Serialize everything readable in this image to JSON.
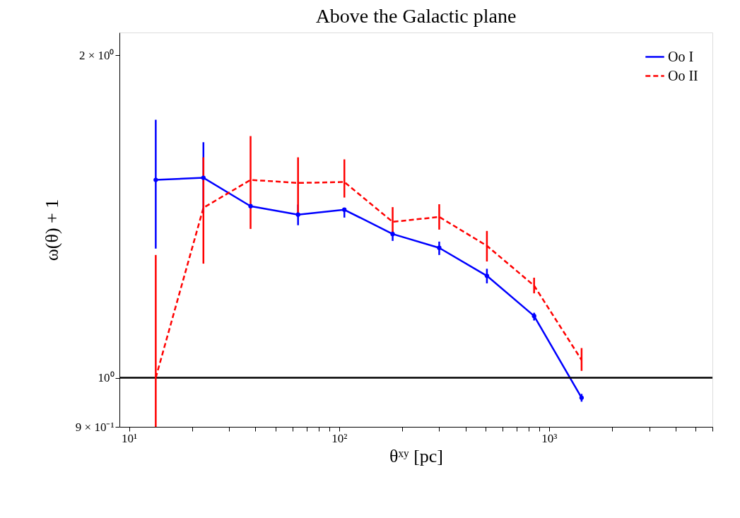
{
  "chart_data": {
    "type": "line",
    "title": "Above the Galactic plane",
    "xlabel": "θˣʸ [pc]",
    "ylabel": "ω(θ) + 1",
    "log": "xy",
    "grid": false,
    "legend": "top right",
    "xlim": [
      9,
      6000
    ],
    "ylim": [
      0.9,
      2.1
    ],
    "xticks": [
      {
        "value": 10,
        "label": "10¹"
      },
      {
        "value": 20,
        "label": null
      },
      {
        "value": 30,
        "label": null
      },
      {
        "value": 40,
        "label": null
      },
      {
        "value": 50,
        "label": null
      },
      {
        "value": 60,
        "label": null
      },
      {
        "value": 70,
        "label": null
      },
      {
        "value": 80,
        "label": null
      },
      {
        "value": 90,
        "label": null
      },
      {
        "value": 100,
        "label": "10²"
      },
      {
        "value": 200,
        "label": null
      },
      {
        "value": 300,
        "label": null
      },
      {
        "value": 400,
        "label": null
      },
      {
        "value": 500,
        "label": null
      },
      {
        "value": 600,
        "label": null
      },
      {
        "value": 700,
        "label": null
      },
      {
        "value": 800,
        "label": null
      },
      {
        "value": 900,
        "label": null
      },
      {
        "value": 1000,
        "label": "10³"
      },
      {
        "value": 2000,
        "label": null
      },
      {
        "value": 3000,
        "label": null
      },
      {
        "value": 4000,
        "label": null
      },
      {
        "value": 5000,
        "label": null
      },
      {
        "value": 6000,
        "label": null
      }
    ],
    "yticks": [
      {
        "value": 0.9,
        "label": "9 × 10⁻¹"
      },
      {
        "value": 1,
        "label": "10⁰"
      },
      {
        "value": 2,
        "label": "2 × 10⁰"
      }
    ],
    "x": [
      13.4,
      22.6,
      37.9,
      63.8,
      106,
      180,
      300,
      506,
      849,
      1429
    ],
    "series": [
      {
        "name": "Oo I",
        "color": "#0000ff",
        "marker": "circle",
        "line_style": "solid",
        "values": [
          1.53,
          1.537,
          1.446,
          1.42,
          1.435,
          1.362,
          1.322,
          1.245,
          1.142,
          0.958
        ],
        "errors": [
          [
            1.32,
            1.741
          ],
          [
            1.426,
            1.659
          ],
          null,
          [
            1.388,
            1.451
          ],
          [
            1.411,
            1.439
          ],
          [
            1.342,
            1.371
          ],
          [
            1.302,
            1.34
          ],
          [
            1.225,
            1.264
          ],
          [
            1.131,
            1.15
          ],
          [
            0.95,
            0.966
          ]
        ]
      },
      {
        "name": "Oo II",
        "color": "#ff0000",
        "marker": "none",
        "line_style": "dashed",
        "values": [
          1.0,
          1.441,
          1.53,
          1.52,
          1.523,
          1.398,
          1.413,
          1.328,
          1.219,
          1.039
        ],
        "errors": [
          [
            0.9,
            1.302
          ],
          [
            1.278,
            1.606
          ],
          [
            1.377,
            1.681
          ],
          [
            1.424,
            1.606
          ],
          [
            1.473,
            1.599
          ],
          [
            1.366,
            1.443
          ],
          [
            1.375,
            1.452
          ],
          [
            1.284,
            1.371
          ],
          [
            1.199,
            1.24
          ],
          [
            1.015,
            1.066
          ]
        ]
      }
    ],
    "ref_lines": [
      {
        "axis": "y",
        "value": 1,
        "color": "#000000",
        "line_style": "solid"
      }
    ]
  }
}
